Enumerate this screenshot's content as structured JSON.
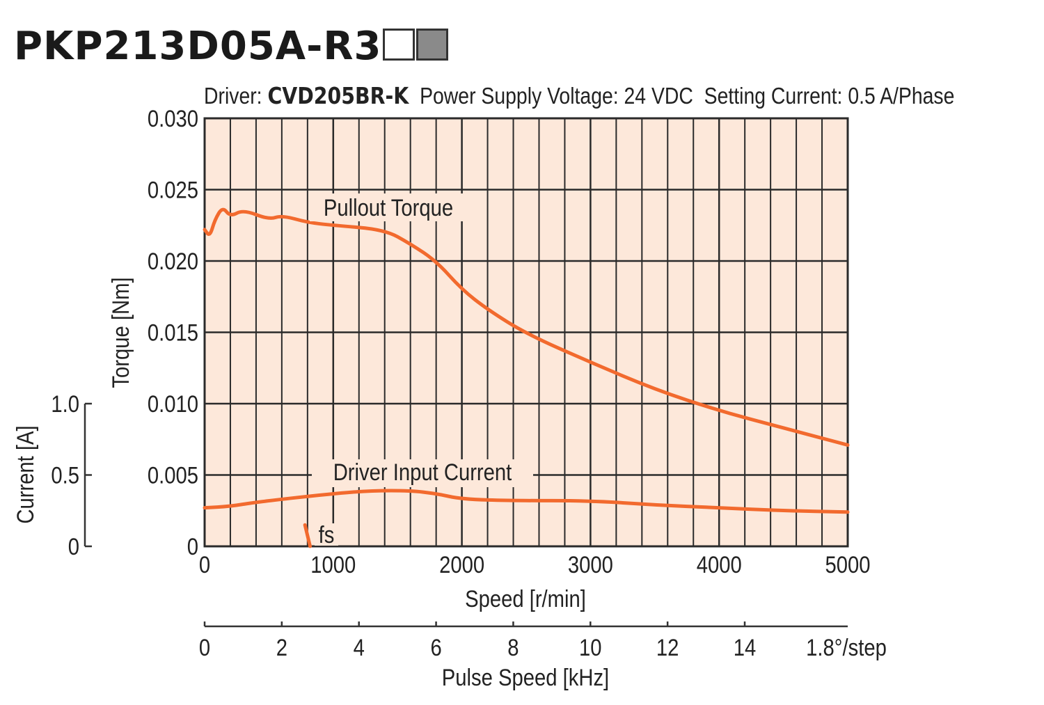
{
  "title": {
    "model": "PKP213D05A-R3",
    "box_colors": [
      "#ffffff",
      "#8a8a8a"
    ]
  },
  "conditions": {
    "driver_label": "Driver:",
    "driver": "CVD205BR-K",
    "voltage": "Power Supply Voltage: 24 VDC",
    "current": "Setting Current: 0.5 A/Phase"
  },
  "chart_data": {
    "type": "line",
    "xlabel": "Speed [r/min]",
    "ylabel": "Torque [Nm]",
    "y2label": "Current [A]",
    "x2label": "Pulse Speed [kHz]",
    "x2unit": "1.8°/step",
    "xlim": [
      0,
      5000
    ],
    "ylim": [
      0,
      0.03
    ],
    "y2lim": [
      0,
      1.5
    ],
    "x2lim": [
      0,
      16.67
    ],
    "xticks": [
      "0",
      "1000",
      "2000",
      "3000",
      "4000",
      "5000"
    ],
    "yticks": [
      "0",
      "0.005",
      "0.010",
      "0.015",
      "0.020",
      "0.025",
      "0.030"
    ],
    "y2ticks": [
      "0",
      "0.5",
      "1.0"
    ],
    "x2ticks": [
      "0",
      "2",
      "4",
      "6",
      "8",
      "10",
      "12",
      "14"
    ],
    "grid": true,
    "colors": {
      "curve": "#f26a2e",
      "plot_bg": "#fde8da",
      "grid": "#2a2a2a"
    },
    "series": [
      {
        "name": "Pullout Torque",
        "axis": "torque",
        "x": [
          0,
          40,
          80,
          140,
          200,
          300,
          500,
          600,
          800,
          1000,
          1400,
          1600,
          1800,
          2000,
          2200,
          2500,
          3000,
          3500,
          4000,
          4500,
          5000
        ],
        "y": [
          0.0222,
          0.0217,
          0.0229,
          0.0238,
          0.0231,
          0.0236,
          0.0229,
          0.0232,
          0.0227,
          0.0225,
          0.0222,
          0.0212,
          0.02,
          0.018,
          0.0166,
          0.0149,
          0.0129,
          0.011,
          0.0095,
          0.0083,
          0.0071
        ]
      },
      {
        "name": "Driver Input Current",
        "axis": "current",
        "x": [
          0,
          200,
          400,
          1000,
          1300,
          1600,
          1800,
          2000,
          2400,
          3000,
          3500,
          4000,
          4500,
          5000
        ],
        "y": [
          0.27,
          0.28,
          0.31,
          0.37,
          0.39,
          0.39,
          0.37,
          0.33,
          0.32,
          0.32,
          0.29,
          0.27,
          0.25,
          0.24
        ]
      },
      {
        "name": "fs",
        "axis": "torque",
        "x": [
          780,
          820
        ],
        "y": [
          0.0015,
          0
        ]
      }
    ]
  }
}
